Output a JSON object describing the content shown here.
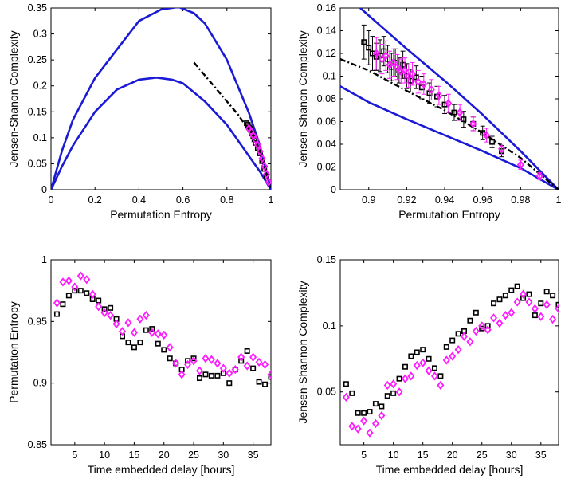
{
  "colors": {
    "curve": "#1a1ad6",
    "black": "#000000",
    "magenta": "#ff1aff"
  },
  "chart_data": [
    {
      "id": "p1",
      "type": "scatter",
      "xlabel": "Permutation Entropy",
      "ylabel": "Jensen-Shanon Complexity",
      "xlim": [
        0,
        1
      ],
      "ylim": [
        0,
        0.35
      ],
      "xticks": [
        0,
        0.2,
        0.4,
        0.6,
        0.8,
        1
      ],
      "xtick_labels": [
        "0",
        "0.2",
        "0.4",
        "0.6",
        "0.8",
        "1"
      ],
      "yticks": [
        0,
        0.05,
        0.1,
        0.15,
        0.2,
        0.25,
        0.3,
        0.35
      ],
      "ytick_labels": [
        "0",
        "0.05",
        "0.1",
        "0.15",
        "0.2",
        "0.25",
        "0.3",
        "0.35"
      ],
      "grid": false,
      "lines": [
        {
          "color": "#1a1ad6",
          "dash": false,
          "x": [
            0,
            0.05,
            0.1,
            0.2,
            0.3,
            0.4,
            0.5,
            0.58,
            0.65,
            0.7,
            0.8,
            0.9,
            0.95,
            1.0
          ],
          "y": [
            0,
            0.075,
            0.135,
            0.215,
            0.27,
            0.325,
            0.347,
            0.352,
            0.34,
            0.32,
            0.25,
            0.148,
            0.085,
            0
          ]
        },
        {
          "color": "#1a1ad6",
          "dash": false,
          "x": [
            0,
            0.05,
            0.1,
            0.2,
            0.3,
            0.4,
            0.48,
            0.55,
            0.6,
            0.7,
            0.8,
            0.9,
            0.95,
            1.0
          ],
          "y": [
            0,
            0.045,
            0.085,
            0.15,
            0.193,
            0.212,
            0.216,
            0.212,
            0.205,
            0.17,
            0.125,
            0.065,
            0.035,
            0
          ]
        },
        {
          "color": "#000000",
          "dash": true,
          "x": [
            0.65,
            0.7,
            0.75,
            0.8,
            0.85,
            0.9,
            0.95,
            1.0
          ],
          "y": [
            0.245,
            0.22,
            0.195,
            0.17,
            0.145,
            0.115,
            0.07,
            0.0
          ]
        }
      ],
      "series": [
        {
          "marker": "square",
          "color": "#000000",
          "x": [
            0.89,
            0.895,
            0.9,
            0.905,
            0.91,
            0.915,
            0.92,
            0.925,
            0.93,
            0.94,
            0.95,
            0.96,
            0.97,
            0.98
          ],
          "y": [
            0.128,
            0.125,
            0.12,
            0.118,
            0.114,
            0.108,
            0.102,
            0.097,
            0.09,
            0.08,
            0.07,
            0.055,
            0.04,
            0.025
          ]
        },
        {
          "marker": "diamond",
          "color": "#ff1aff",
          "x": [
            0.9,
            0.91,
            0.92,
            0.93,
            0.94,
            0.95,
            0.96,
            0.97,
            0.98,
            0.99
          ],
          "y": [
            0.118,
            0.112,
            0.104,
            0.096,
            0.086,
            0.074,
            0.06,
            0.045,
            0.03,
            0.015
          ]
        }
      ]
    },
    {
      "id": "p2",
      "type": "scatter",
      "xlabel": "Permutation Entropy",
      "ylabel": "Jensen-Shanon Complexity",
      "xlim": [
        0.885,
        1
      ],
      "ylim": [
        0,
        0.16
      ],
      "xticks": [
        0.9,
        0.92,
        0.94,
        0.96,
        0.98,
        1
      ],
      "xtick_labels": [
        "0.9",
        "0.92",
        "0.94",
        "0.96",
        "0.98",
        "1"
      ],
      "yticks": [
        0,
        0.02,
        0.04,
        0.06,
        0.08,
        0.1,
        0.12,
        0.14,
        0.16
      ],
      "ytick_labels": [
        "0",
        "0.02",
        "0.04",
        "0.06",
        "0.08",
        "0.1",
        "0.12",
        "0.14",
        "0.16"
      ],
      "grid": false,
      "lines": [
        {
          "color": "#1a1ad6",
          "dash": false,
          "x": [
            0.8955,
            0.92,
            0.94,
            0.96,
            0.98,
            1.0
          ],
          "y": [
            0.16,
            0.124,
            0.096,
            0.066,
            0.034,
            0.0
          ]
        },
        {
          "color": "#1a1ad6",
          "dash": false,
          "x": [
            0.885,
            0.9,
            0.92,
            0.94,
            0.96,
            0.98,
            1.0
          ],
          "y": [
            0.091,
            0.077,
            0.062,
            0.048,
            0.034,
            0.019,
            0.0
          ]
        },
        {
          "color": "#000000",
          "dash": true,
          "x": [
            0.885,
            0.9,
            0.92,
            0.94,
            0.96,
            0.98,
            1.0
          ],
          "y": [
            0.115,
            0.105,
            0.087,
            0.07,
            0.05,
            0.028,
            0.0
          ]
        }
      ],
      "series": [
        {
          "marker": "square",
          "color": "#000000",
          "x": [
            0.8975,
            0.9,
            0.902,
            0.904,
            0.906,
            0.908,
            0.91,
            0.912,
            0.914,
            0.916,
            0.918,
            0.92,
            0.922,
            0.925,
            0.928,
            0.932,
            0.936,
            0.94,
            0.945,
            0.95,
            0.955,
            0.96,
            0.965,
            0.97
          ],
          "y": [
            0.13,
            0.125,
            0.12,
            0.117,
            0.118,
            0.122,
            0.115,
            0.108,
            0.112,
            0.105,
            0.11,
            0.1,
            0.096,
            0.099,
            0.09,
            0.085,
            0.082,
            0.075,
            0.068,
            0.062,
            0.058,
            0.05,
            0.042,
            0.034
          ],
          "err": [
            0.015,
            0.015,
            0.015,
            0.012,
            0.014,
            0.013,
            0.012,
            0.012,
            0.012,
            0.011,
            0.012,
            0.011,
            0.01,
            0.01,
            0.01,
            0.009,
            0.009,
            0.008,
            0.007,
            0.007,
            0.006,
            0.006,
            0.005,
            0.005
          ]
        },
        {
          "marker": "diamond",
          "color": "#ff1aff",
          "x": [
            0.904,
            0.907,
            0.909,
            0.911,
            0.913,
            0.915,
            0.917,
            0.919,
            0.921,
            0.923,
            0.926,
            0.929,
            0.933,
            0.937,
            0.942,
            0.948,
            0.955,
            0.962,
            0.97,
            0.98,
            0.99
          ],
          "y": [
            0.12,
            0.115,
            0.118,
            0.11,
            0.112,
            0.108,
            0.104,
            0.105,
            0.1,
            0.102,
            0.095,
            0.093,
            0.088,
            0.083,
            0.076,
            0.068,
            0.058,
            0.048,
            0.036,
            0.022,
            0.012
          ],
          "err": [
            0.014,
            0.013,
            0.013,
            0.012,
            0.012,
            0.011,
            0.011,
            0.011,
            0.01,
            0.01,
            0.01,
            0.009,
            0.009,
            0.008,
            0.008,
            0.007,
            0.006,
            0.006,
            0.005,
            0.004,
            0.003
          ]
        }
      ]
    },
    {
      "id": "p3",
      "type": "scatter",
      "xlabel": "Time embedded delay [hours]",
      "ylabel": "Permutation Entropy",
      "xlim": [
        1,
        38
      ],
      "ylim": [
        0.85,
        1
      ],
      "xticks": [
        5,
        10,
        15,
        20,
        25,
        30,
        35
      ],
      "xtick_labels": [
        "5",
        "10",
        "15",
        "20",
        "25",
        "30",
        "35"
      ],
      "yticks": [
        0.85,
        0.9,
        0.95,
        1
      ],
      "ytick_labels": [
        "0.85",
        "0.9",
        "0.95",
        "1"
      ],
      "grid": false,
      "lines": [],
      "series": [
        {
          "marker": "square",
          "color": "#000000",
          "x": [
            2,
            3,
            4,
            5,
            6,
            7,
            8,
            9,
            10,
            11,
            12,
            13,
            14,
            15,
            16,
            17,
            18,
            19,
            20,
            21,
            22,
            23,
            24,
            25,
            26,
            27,
            28,
            29,
            30,
            31,
            32,
            33,
            34,
            35,
            36,
            37,
            38
          ],
          "y": [
            0.956,
            0.964,
            0.971,
            0.975,
            0.975,
            0.973,
            0.968,
            0.967,
            0.96,
            0.961,
            0.952,
            0.938,
            0.933,
            0.929,
            0.933,
            0.943,
            0.944,
            0.932,
            0.927,
            0.92,
            0.916,
            0.911,
            0.918,
            0.92,
            0.904,
            0.907,
            0.906,
            0.906,
            0.908,
            0.9,
            0.911,
            0.918,
            0.926,
            0.912,
            0.901,
            0.899,
            0.905
          ]
        },
        {
          "marker": "diamond",
          "color": "#ff1aff",
          "x": [
            2,
            3,
            4,
            5,
            6,
            7,
            8,
            9,
            10,
            11,
            12,
            13,
            14,
            15,
            16,
            17,
            18,
            19,
            20,
            21,
            22,
            23,
            24,
            25,
            26,
            27,
            28,
            29,
            30,
            31,
            32,
            33,
            34,
            35,
            36,
            37,
            38
          ],
          "y": [
            0.965,
            0.982,
            0.983,
            0.978,
            0.987,
            0.984,
            0.972,
            0.962,
            0.957,
            0.955,
            0.948,
            0.942,
            0.949,
            0.941,
            0.952,
            0.955,
            0.941,
            0.94,
            0.939,
            0.929,
            0.916,
            0.907,
            0.915,
            0.918,
            0.91,
            0.92,
            0.919,
            0.916,
            0.912,
            0.908,
            0.911,
            0.921,
            0.914,
            0.921,
            0.917,
            0.915,
            0.907
          ]
        }
      ]
    },
    {
      "id": "p4",
      "type": "scatter",
      "xlabel": "Time embedded delay [hours]",
      "ylabel": "Jensen-Shannon Complexity",
      "xlim": [
        1,
        38
      ],
      "ylim": [
        0.01,
        0.15
      ],
      "xticks": [
        5,
        10,
        15,
        20,
        25,
        30,
        35
      ],
      "xtick_labels": [
        "5",
        "10",
        "15",
        "20",
        "25",
        "30",
        "35"
      ],
      "yticks": [
        0.05,
        0.1,
        0.15
      ],
      "ytick_labels": [
        "0.05",
        "0.1",
        "0.15"
      ],
      "grid": false,
      "lines": [],
      "series": [
        {
          "marker": "square",
          "color": "#000000",
          "x": [
            2,
            3,
            4,
            5,
            6,
            7,
            8,
            9,
            10,
            11,
            12,
            13,
            14,
            15,
            16,
            17,
            18,
            19,
            20,
            21,
            22,
            23,
            24,
            25,
            26,
            27,
            28,
            29,
            30,
            31,
            32,
            33,
            34,
            35,
            36,
            37,
            38
          ],
          "y": [
            0.056,
            0.049,
            0.034,
            0.034,
            0.035,
            0.041,
            0.039,
            0.047,
            0.049,
            0.06,
            0.069,
            0.077,
            0.08,
            0.082,
            0.075,
            0.068,
            0.062,
            0.084,
            0.089,
            0.094,
            0.096,
            0.104,
            0.11,
            0.098,
            0.1,
            0.117,
            0.12,
            0.123,
            0.127,
            0.13,
            0.121,
            0.124,
            0.108,
            0.117,
            0.126,
            0.123,
            0.116
          ]
        },
        {
          "marker": "diamond",
          "color": "#ff1aff",
          "x": [
            2,
            3,
            4,
            5,
            6,
            7,
            8,
            9,
            10,
            11,
            12,
            13,
            14,
            15,
            16,
            17,
            18,
            19,
            20,
            21,
            22,
            23,
            24,
            25,
            26,
            27,
            28,
            29,
            30,
            31,
            32,
            33,
            34,
            35,
            36,
            37,
            38
          ],
          "y": [
            0.046,
            0.024,
            0.022,
            0.028,
            0.019,
            0.026,
            0.032,
            0.055,
            0.056,
            0.05,
            0.06,
            0.062,
            0.07,
            0.072,
            0.066,
            0.062,
            0.055,
            0.074,
            0.077,
            0.082,
            0.092,
            0.088,
            0.096,
            0.1,
            0.097,
            0.106,
            0.102,
            0.108,
            0.11,
            0.118,
            0.124,
            0.118,
            0.113,
            0.107,
            0.116,
            0.105,
            0.113
          ]
        }
      ]
    }
  ]
}
